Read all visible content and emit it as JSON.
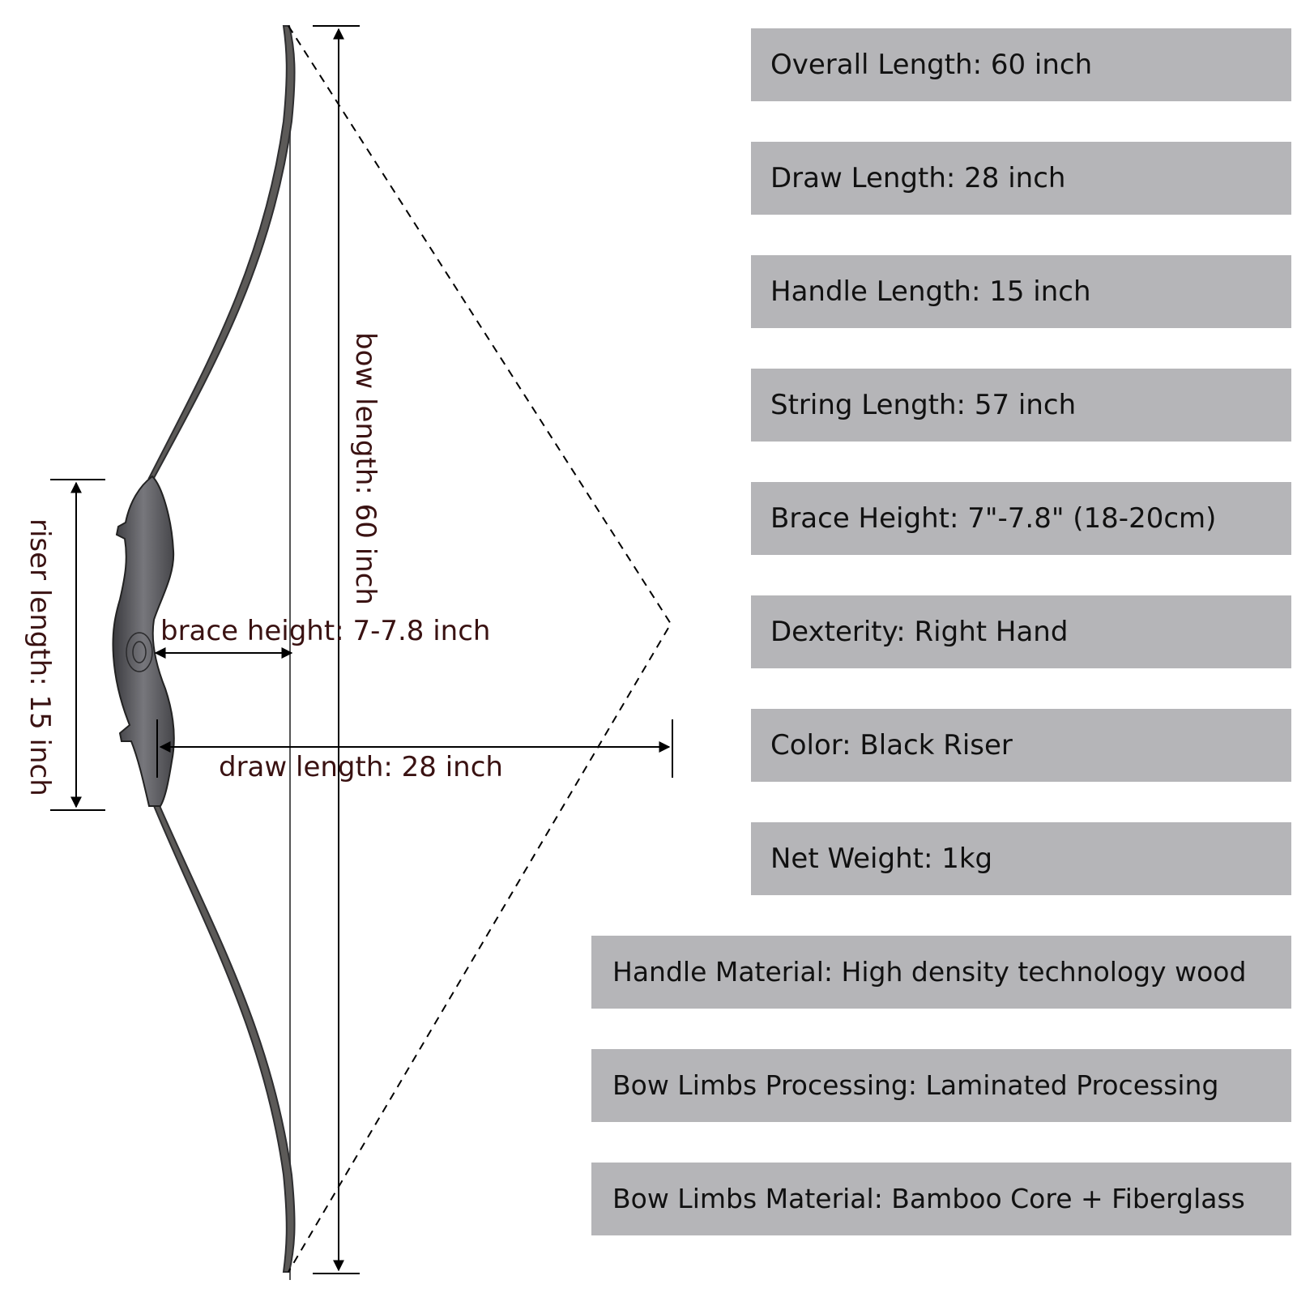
{
  "dimensions": {
    "bow_length": "bow length: 60 inch",
    "riser_length": "riser length: 15 inch",
    "brace_height": "brace height: 7-7.8 inch",
    "draw_length": "draw length: 28 inch"
  },
  "specs": [
    "Overall Length: 60 inch",
    "Draw Length: 28 inch",
    "Handle Length: 15 inch",
    "String Length: 57 inch",
    "Brace Height: 7\"-7.8\" (18-20cm)",
    "Dexterity: Right Hand",
    "Color: Black Riser",
    "Net Weight: 1kg",
    "Handle Material: High density technology wood",
    "Bow Limbs Processing: Laminated Processing",
    "Bow Limbs Material: Bamboo Core + Fiberglass"
  ],
  "colors": {
    "spec_background": "#b5b5b8",
    "label_text": "#3a1212",
    "riser": "#4a4a4e"
  }
}
